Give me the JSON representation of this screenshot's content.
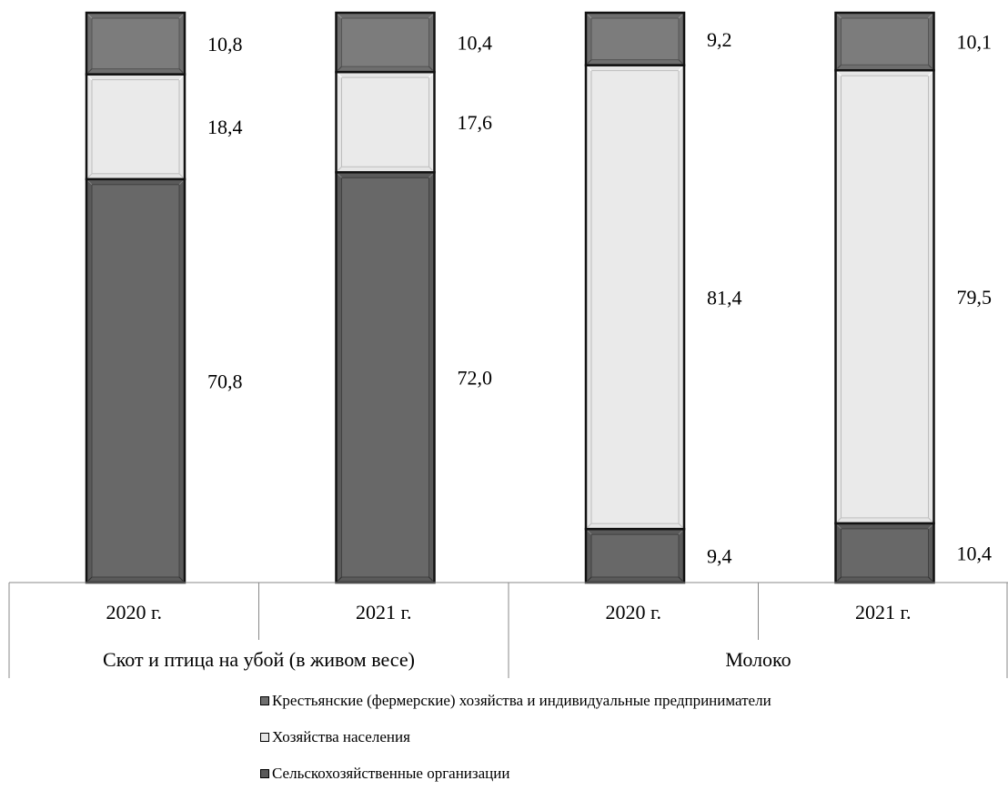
{
  "chart_data": {
    "type": "bar",
    "stacked": true,
    "percent_scale": true,
    "ylim": [
      0,
      100
    ],
    "categories": [
      {
        "year": "2020 г.",
        "group": "Скот и птица на убой (в живом весе)"
      },
      {
        "year": "2021 г.",
        "group": "Скот и птица на убой (в живом весе)"
      },
      {
        "year": "2020 г.",
        "group": "Молоко"
      },
      {
        "year": "2021 г.",
        "group": "Молоко"
      }
    ],
    "groups": [
      "Скот и птица на убой (в живом весе)",
      "Молоко"
    ],
    "series": [
      {
        "name": "Сельскохозяйственные организации",
        "color": "#5a5a5a",
        "values": [
          70.8,
          72.0,
          9.4,
          10.4
        ],
        "labels": [
          "70,8",
          "72,0",
          "9,4",
          "10,4"
        ]
      },
      {
        "name": "Хозяйства населения",
        "color": "#e6e6e6",
        "values": [
          18.4,
          17.6,
          81.4,
          79.5
        ],
        "labels": [
          "18,4",
          "17,6",
          "81,4",
          "79,5"
        ]
      },
      {
        "name": "Крестьянские (фермерские) хозяйства и индивидуальные предприниматели",
        "color": "#6e6e6e",
        "values": [
          10.8,
          10.4,
          9.2,
          10.1
        ],
        "labels": [
          "10,8",
          "10,4",
          "9,2",
          "10,1"
        ]
      }
    ],
    "legend_order": [
      2,
      1,
      0
    ],
    "legend_position": "bottom",
    "grid": false
  }
}
